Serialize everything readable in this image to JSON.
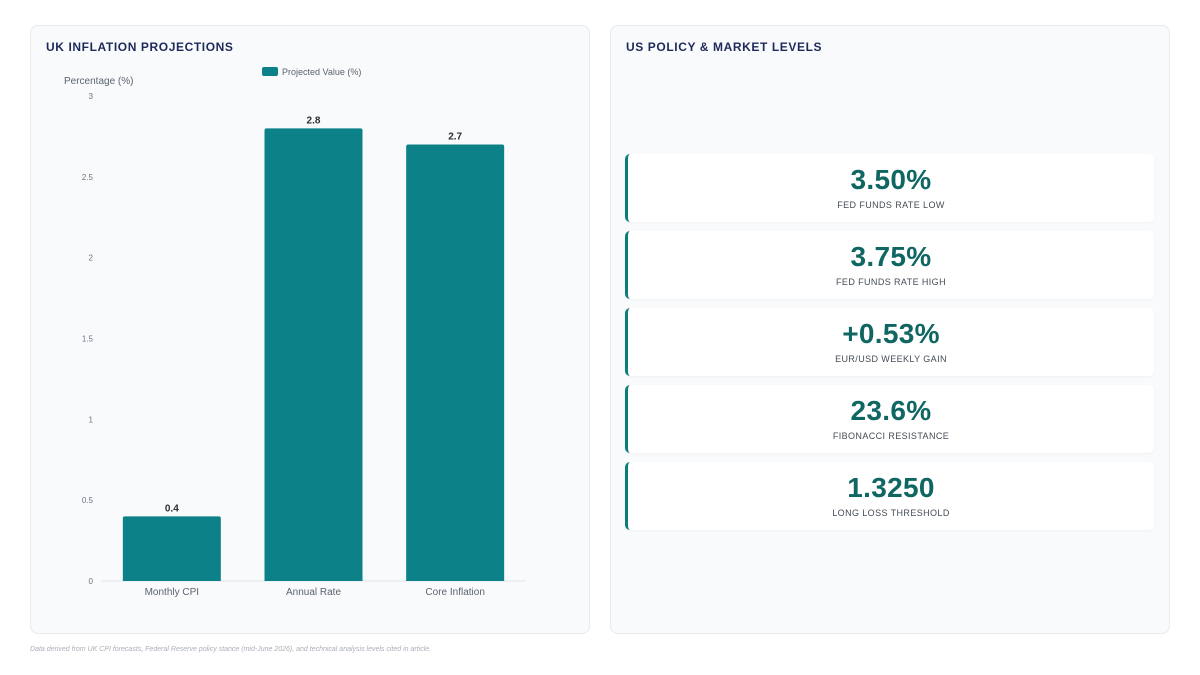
{
  "left_panel": {
    "title": "UK INFLATION PROJECTIONS"
  },
  "right_panel": {
    "title": "US POLICY & MARKET LEVELS"
  },
  "chart_data": {
    "type": "bar",
    "title": "",
    "xlabel": "",
    "ylabel": "Percentage (%)",
    "categories": [
      "Monthly CPI",
      "Annual Rate",
      "Core Inflation"
    ],
    "series": [
      {
        "name": "Projected Value (%)",
        "values": [
          0.4,
          2.8,
          2.7
        ],
        "color": "#0c8288"
      }
    ],
    "ylim": [
      0,
      3
    ],
    "yticks": [
      "0",
      "0.5",
      "1",
      "1.5",
      "2",
      "2.5",
      "3"
    ],
    "data_labels": [
      "0.4",
      "2.8",
      "2.7"
    ],
    "legend_position": "top-center",
    "grid": false
  },
  "kpis": [
    {
      "value": "3.50%",
      "label": "FED FUNDS RATE LOW"
    },
    {
      "value": "3.75%",
      "label": "FED FUNDS RATE HIGH"
    },
    {
      "value": "+0.53%",
      "label": "EUR/USD WEEKLY GAIN"
    },
    {
      "value": "23.6%",
      "label": "FIBONACCI RESISTANCE"
    },
    {
      "value": "1.3250",
      "label": "LONG LOSS THRESHOLD"
    }
  ],
  "colors": {
    "accent": "#0c8288",
    "kpi_text": "#0f6662",
    "title": "#1e2a5a"
  },
  "footnote": "Data derived from UK CPI forecasts, Federal Reserve policy stance (mid-June 2026), and technical analysis levels cited in article."
}
